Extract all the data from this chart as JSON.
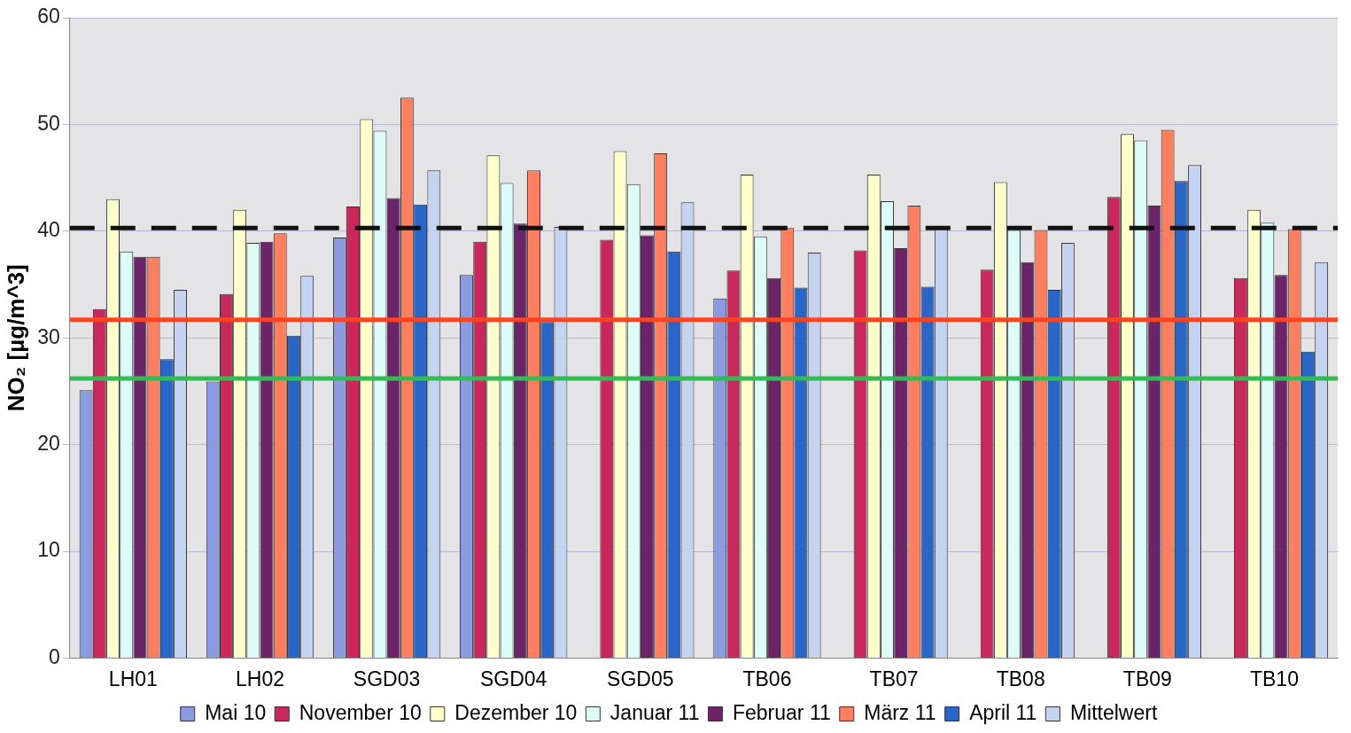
{
  "chart_data": {
    "type": "bar",
    "ylabel": "NO₂ [µg/m^3]",
    "categories": [
      "LH01",
      "LH02",
      "SGD03",
      "SGD04",
      "SGD05",
      "TB06",
      "TB07",
      "TB08",
      "TB09",
      "TB10"
    ],
    "series": [
      {
        "name": "Mai 10",
        "color": "#8c9be0",
        "values": [
          25.1,
          25.9,
          39.4,
          35.9,
          null,
          33.7,
          null,
          null,
          null,
          null
        ]
      },
      {
        "name": "November 10",
        "color": "#c8285a",
        "values": [
          32.7,
          34.1,
          42.3,
          39.0,
          39.2,
          36.3,
          38.2,
          36.4,
          43.2,
          35.6
        ]
      },
      {
        "name": "Dezember 10",
        "color": "#ffffcc",
        "values": [
          43.0,
          42.0,
          50.5,
          47.1,
          47.5,
          45.3,
          45.3,
          44.6,
          49.1,
          42.0
        ]
      },
      {
        "name": "Januar 11",
        "color": "#ddfcf8",
        "values": [
          38.1,
          38.9,
          49.4,
          44.5,
          44.4,
          39.5,
          42.8,
          40.1,
          48.5,
          40.8
        ]
      },
      {
        "name": "Februar 11",
        "color": "#6b2468",
        "values": [
          37.6,
          39.0,
          43.1,
          40.7,
          39.6,
          35.6,
          38.4,
          37.1,
          42.4,
          35.9
        ]
      },
      {
        "name": "März 11",
        "color": "#ff7f60",
        "values": [
          37.6,
          39.8,
          52.5,
          45.7,
          47.3,
          40.3,
          42.4,
          40.1,
          49.5,
          40.2
        ]
      },
      {
        "name": "April 11",
        "color": "#2a66c8",
        "values": [
          28.0,
          30.2,
          42.5,
          31.5,
          38.1,
          34.7,
          34.8,
          34.5,
          44.7,
          28.7
        ]
      },
      {
        "name": "Mittelwert",
        "color": "#c4d4f0",
        "values": [
          34.5,
          35.8,
          45.7,
          40.4,
          42.7,
          38.0,
          40.3,
          38.9,
          46.2,
          37.1
        ]
      }
    ],
    "ylim": [
      0,
      60
    ],
    "yticks": [
      0,
      10,
      20,
      30,
      40,
      50,
      60
    ],
    "grid": "y",
    "legend": "bottom",
    "ref_lines": [
      {
        "axis": "y",
        "value": 40.3,
        "color": "#111111",
        "line_style": "dashed"
      },
      {
        "axis": "y",
        "value": 31.7,
        "color": "#ff4422",
        "line_style": "solid"
      },
      {
        "axis": "y",
        "value": 26.2,
        "color": "#33bb55",
        "line_style": "solid"
      }
    ]
  }
}
